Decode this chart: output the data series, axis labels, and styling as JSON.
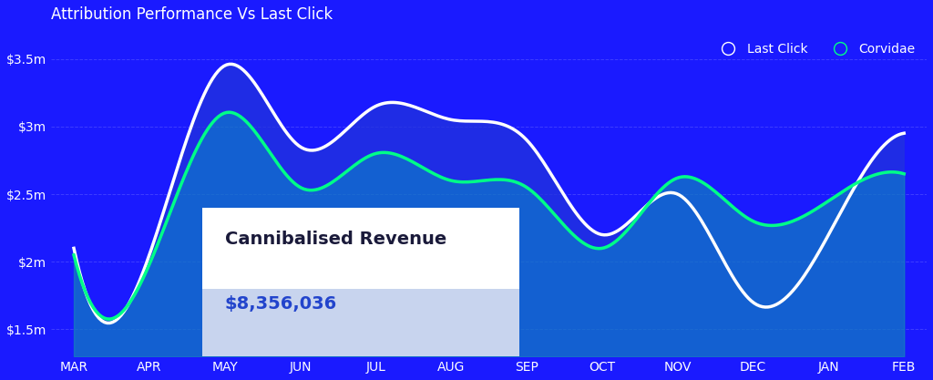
{
  "title": "Attribution Performance Vs Last Click",
  "background_color": "#1a1aff",
  "plot_bg_color": "#1a1aff",
  "grid_color": "#5555ff",
  "title_color": "#ffffff",
  "ylabel_ticks": [
    "$1.5m",
    "$2m",
    "$2.5m",
    "$3m",
    "$3.5m"
  ],
  "ytick_values": [
    1500000,
    2000000,
    2500000,
    3000000,
    3500000
  ],
  "ylim": [
    1300000,
    3700000
  ],
  "months": [
    "MAR",
    "APR",
    "MAY",
    "JUN",
    "JUL",
    "AUG",
    "SEP",
    "OCT",
    "NOV",
    "DEC",
    "JAN",
    "FEB"
  ],
  "last_click_x": [
    0,
    1,
    2,
    3,
    4,
    5,
    6,
    7,
    8,
    9,
    10,
    11
  ],
  "last_click_y": [
    2100000,
    2050000,
    3450000,
    2850000,
    3150000,
    3050000,
    2900000,
    2200000,
    2500000,
    1700000,
    2200000,
    2950000
  ],
  "corvidae_x": [
    0,
    1,
    2,
    3,
    4,
    5,
    6,
    7,
    8,
    9,
    10,
    11
  ],
  "corvidae_y": [
    2050000,
    1980000,
    3100000,
    2550000,
    2800000,
    2600000,
    2550000,
    2100000,
    2620000,
    2300000,
    2450000,
    2650000
  ],
  "last_click_color": "#ffffff",
  "corvidae_color": "#00ff88",
  "fill_color_top": "#3355ff",
  "fill_color_bottom": "#55aaff",
  "legend_last_click": "Last Click",
  "legend_corvidae": "Corvidae",
  "tooltip_title": "Cannibalised Revenue",
  "tooltip_value": "$8,356,036",
  "tooltip_bg": "#ffffff",
  "tooltip_value_bg": "#dde4f5",
  "tooltip_title_color": "#1a1a3a",
  "tooltip_value_color": "#2244cc"
}
